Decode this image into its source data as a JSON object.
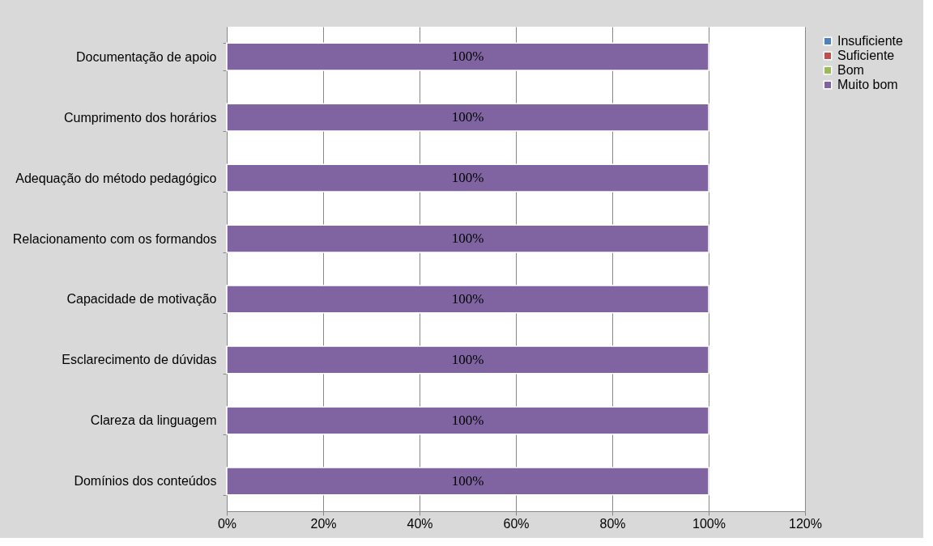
{
  "chart_data": {
    "type": "bar",
    "orientation": "horizontal",
    "stacked": true,
    "categories": [
      "Documentação de apoio",
      "Cumprimento dos horários",
      "Adequação do método pedagógico",
      "Relacionamento com os formandos",
      "Capacidade de motivação",
      "Esclarecimento de dúvidas",
      "Clareza da linguagem",
      "Domínios dos conteúdos"
    ],
    "series": [
      {
        "name": "Insuficiente",
        "color": "#4f81bd",
        "values": [
          0,
          0,
          0,
          0,
          0,
          0,
          0,
          0
        ]
      },
      {
        "name": "Suficiente",
        "color": "#c0504d",
        "values": [
          0,
          0,
          0,
          0,
          0,
          0,
          0,
          0
        ]
      },
      {
        "name": "Bom",
        "color": "#9bbb59",
        "values": [
          0,
          0,
          0,
          0,
          0,
          0,
          0,
          0
        ]
      },
      {
        "name": "Muito bom",
        "color": "#8064a2",
        "values": [
          100,
          100,
          100,
          100,
          100,
          100,
          100,
          100
        ],
        "value_labels": [
          "100%",
          "100%",
          "100%",
          "100%",
          "100%",
          "100%",
          "100%",
          "100%"
        ]
      }
    ],
    "xlim": [
      0,
      120
    ],
    "xticks": [
      {
        "value": 0,
        "label": "0%"
      },
      {
        "value": 20,
        "label": "20%"
      },
      {
        "value": 40,
        "label": "40%"
      },
      {
        "value": 60,
        "label": "60%"
      },
      {
        "value": 80,
        "label": "80%"
      },
      {
        "value": 100,
        "label": "100%"
      },
      {
        "value": 120,
        "label": "120%"
      }
    ],
    "grid": "x",
    "legend": "right"
  }
}
